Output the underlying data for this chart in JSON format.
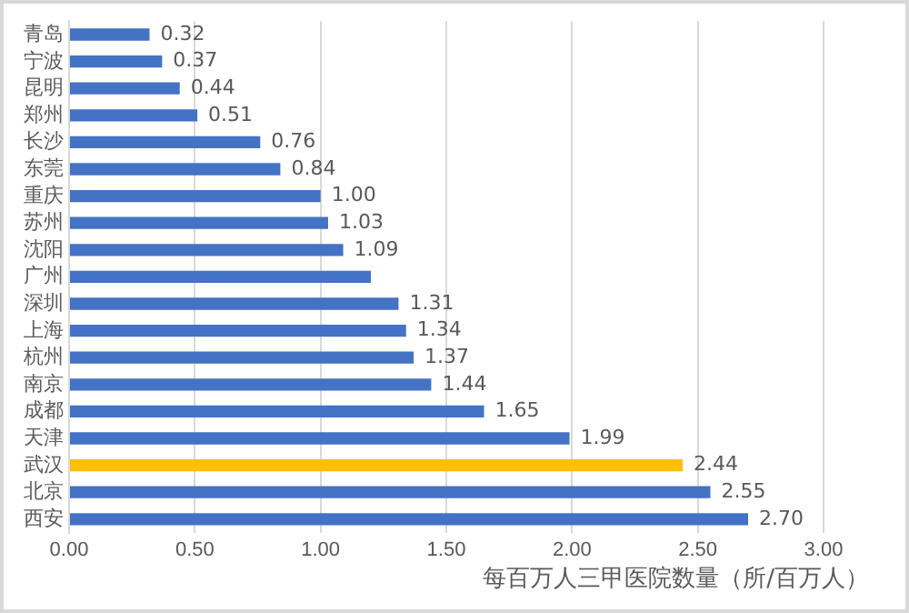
{
  "chart_data": {
    "type": "bar",
    "orientation": "horizontal",
    "xlabel": "每百万人三甲医院数量（所/百万人）",
    "categories": [
      "青岛",
      "宁波",
      "昆明",
      "郑州",
      "长沙",
      "东莞",
      "重庆",
      "苏州",
      "沈阳",
      "广州",
      "深圳",
      "上海",
      "杭州",
      "南京",
      "成都",
      "天津",
      "武汉",
      "北京",
      "西安"
    ],
    "values": [
      0.32,
      0.37,
      0.44,
      0.51,
      0.76,
      0.84,
      1.0,
      1.03,
      1.09,
      1.2,
      1.31,
      1.34,
      1.37,
      1.44,
      1.65,
      1.99,
      2.44,
      2.55,
      2.7
    ],
    "colors": [
      "#4472c4",
      "#4472c4",
      "#4472c4",
      "#4472c4",
      "#4472c4",
      "#4472c4",
      "#4472c4",
      "#4472c4",
      "#4472c4",
      "#4472c4",
      "#4472c4",
      "#4472c4",
      "#4472c4",
      "#4472c4",
      "#4472c4",
      "#4472c4",
      "#ffc000",
      "#4472c4",
      "#4472c4"
    ],
    "value_labels": [
      "0.32",
      "0.37",
      "0.44",
      "0.51",
      "0.76",
      "0.84",
      "1.00",
      "1.03",
      "1.09",
      null,
      "1.31",
      "1.34",
      "1.37",
      "1.44",
      "1.65",
      "1.99",
      "2.44",
      "2.55",
      "2.70"
    ],
    "xlim": [
      0,
      3
    ],
    "xticks": [
      {
        "value": 0,
        "label": "0.00"
      },
      {
        "value": 0.5,
        "label": "0.50"
      },
      {
        "value": 1,
        "label": "1.00"
      },
      {
        "value": 1.5,
        "label": "1.50"
      },
      {
        "value": 2,
        "label": "2.00"
      },
      {
        "value": 2.5,
        "label": "2.50"
      },
      {
        "value": 3,
        "label": "3.00"
      }
    ],
    "grid": "x",
    "legend": false
  }
}
